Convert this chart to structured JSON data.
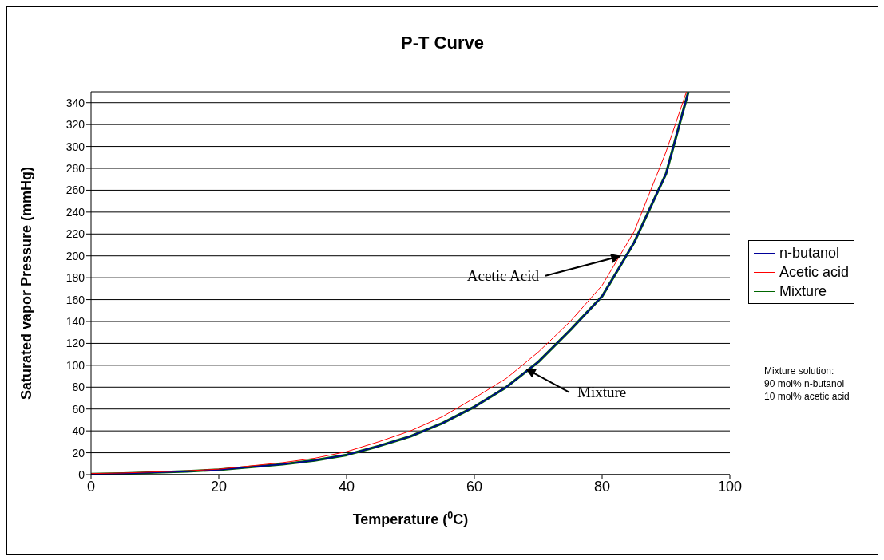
{
  "chart_data": {
    "type": "line",
    "title": "P-T Curve",
    "xlabel": "Temperature ($^{0}$C)",
    "ylabel": "Saturated vapor Pressure (mmHg)",
    "xlim": [
      0,
      100
    ],
    "xticks": [
      0,
      20,
      40,
      60,
      80,
      100
    ],
    "ylim": [
      0,
      350
    ],
    "yticks": [
      0,
      20,
      40,
      60,
      80,
      100,
      120,
      140,
      160,
      180,
      200,
      220,
      240,
      260,
      280,
      300,
      320,
      340
    ],
    "grid": "y",
    "legend": "right",
    "marker": "none",
    "line_style": "solid",
    "series": [
      {
        "name": "n-butanol",
        "color": "#000099",
        "x": [
          0,
          5,
          10,
          15,
          20,
          25,
          30,
          35,
          40,
          45,
          50,
          55,
          60,
          65,
          70,
          75,
          80,
          85,
          90,
          93.5
        ],
        "values": [
          0.5,
          1,
          2,
          3,
          4.5,
          7,
          9.5,
          13,
          18,
          26,
          35,
          47,
          62,
          80,
          103,
          132,
          163,
          212,
          275,
          350
        ]
      },
      {
        "name": "Acetic acid",
        "color": "#ff0000",
        "x": [
          0,
          5,
          10,
          15,
          20,
          25,
          30,
          35,
          40,
          45,
          50,
          55,
          60,
          65,
          70,
          75,
          80,
          85,
          90,
          93.2
        ],
        "values": [
          1,
          1.5,
          2.5,
          3.5,
          5,
          8,
          11,
          15,
          21,
          30,
          40,
          53,
          70,
          88,
          112,
          140,
          173,
          222,
          295,
          350
        ]
      },
      {
        "name": "Mixture",
        "color": "#006600",
        "x": [
          0,
          5,
          10,
          15,
          20,
          25,
          30,
          35,
          40,
          45,
          50,
          55,
          60,
          65,
          70,
          75,
          80,
          85,
          90,
          93.5
        ],
        "values": [
          0.5,
          1,
          2,
          3,
          4.5,
          7,
          9.5,
          13,
          18,
          26,
          35,
          47,
          62,
          80,
          103,
          132,
          163,
          212,
          275,
          350
        ]
      }
    ],
    "annotations": [
      {
        "text": "Acetic Acid",
        "x": 83,
        "y": 200
      },
      {
        "text": "Mixture",
        "x": 68,
        "y": 97
      },
      "Mixture solution:\n90 mol% n-butanol\n10 mol% acetic acid"
    ]
  }
}
